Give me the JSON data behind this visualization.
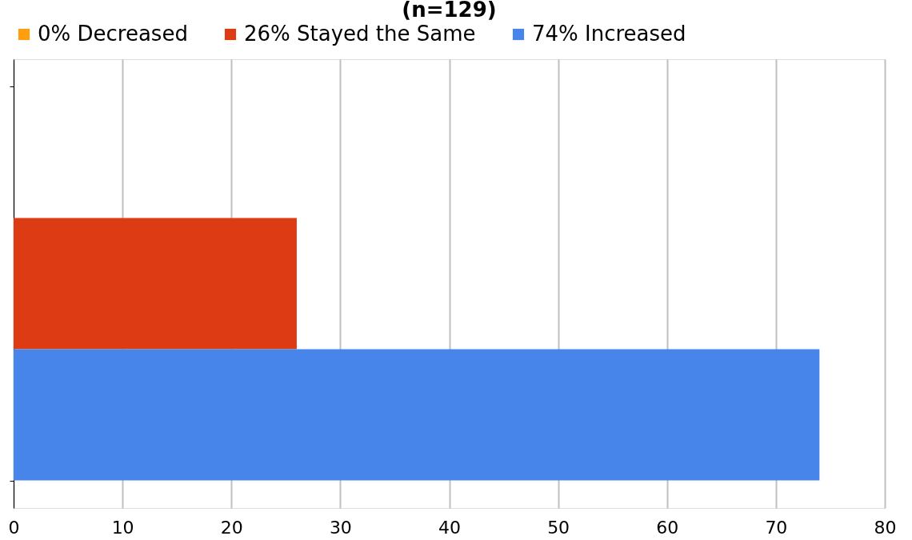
{
  "chart_data": {
    "type": "bar",
    "orientation": "horizontal",
    "title": "(n=129)",
    "categories": [
      null
    ],
    "series": [
      {
        "name": "0% Decreased",
        "color": "#ff9f0f",
        "values": [
          0
        ]
      },
      {
        "name": "26% Stayed the Same",
        "color": "#dd3b13",
        "values": [
          26
        ]
      },
      {
        "name": "74% Increased",
        "color": "#4785ea",
        "values": [
          74
        ]
      }
    ],
    "xlim": [
      0,
      80
    ],
    "xticks": [
      0,
      10,
      20,
      30,
      40,
      50,
      60,
      70,
      80
    ],
    "grid": "x",
    "legend": "top",
    "tick_labels": "x"
  }
}
